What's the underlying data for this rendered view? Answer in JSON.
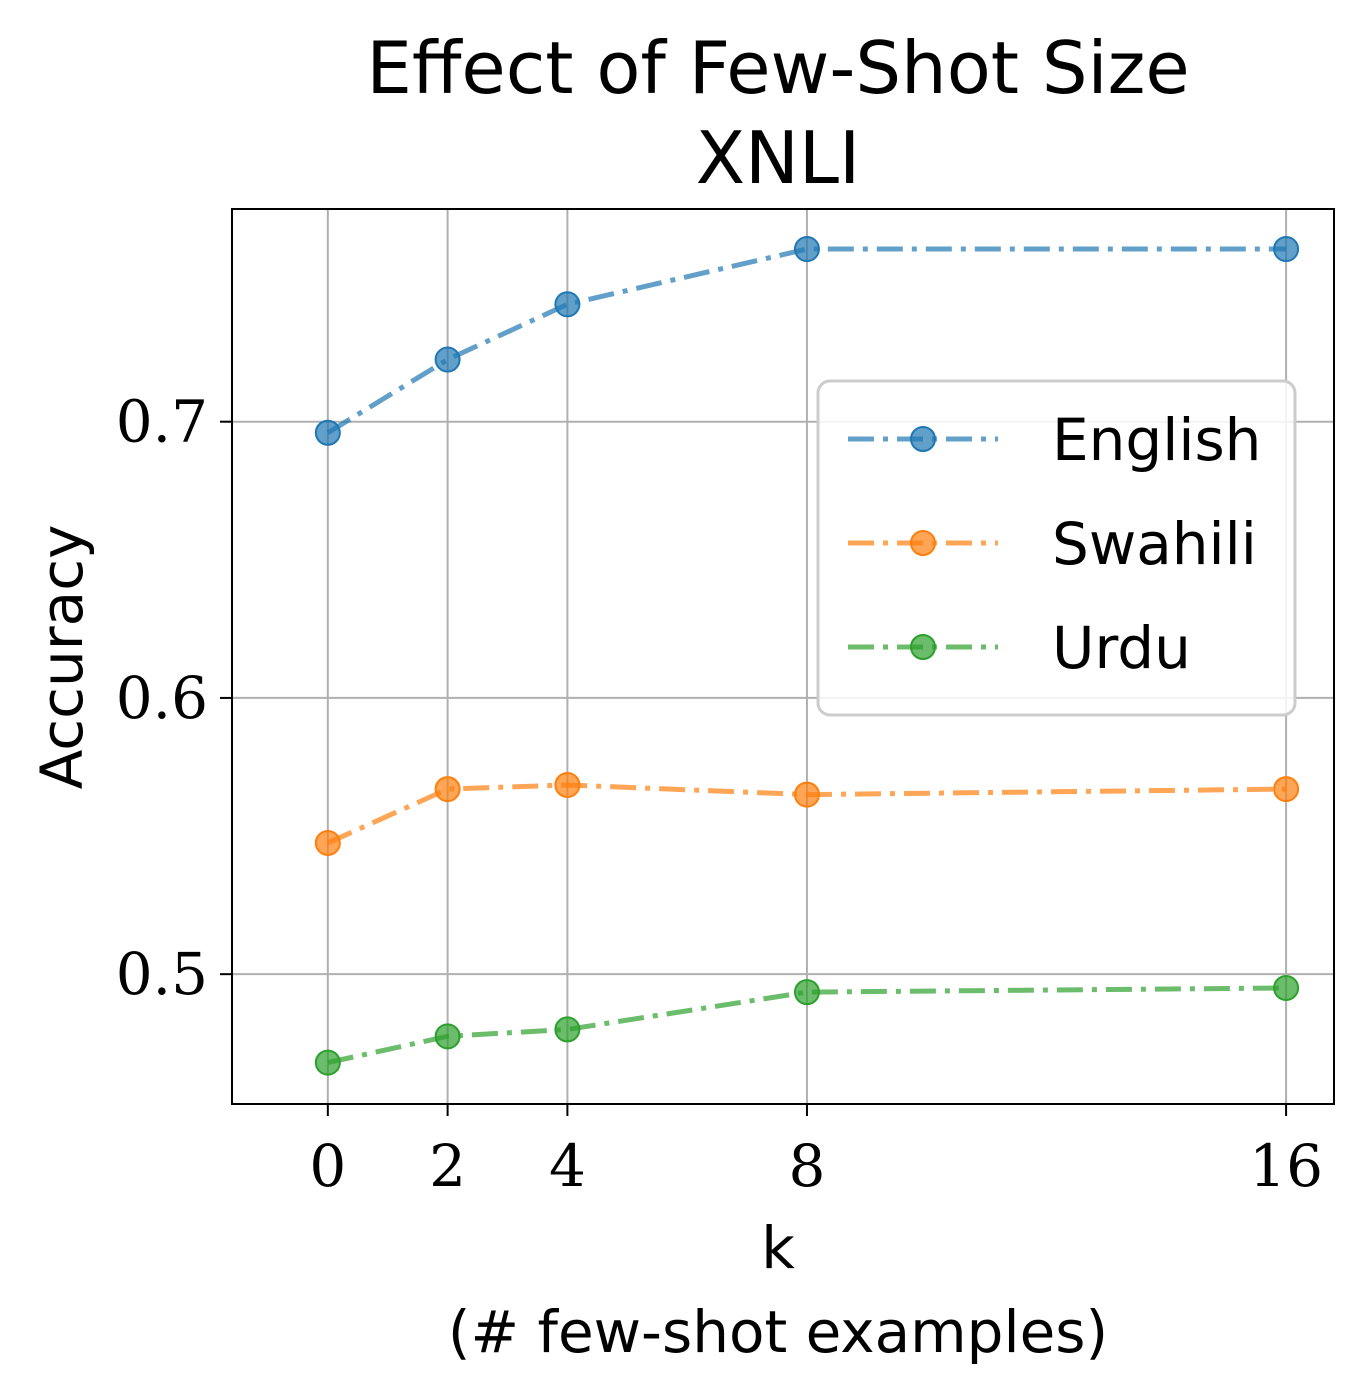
{
  "chart_data": {
    "type": "line",
    "title": "Effect of Few-Shot Size",
    "subtitle": "XNLI",
    "xlabel": "k",
    "xlabel_sub": "(# few-shot examples)",
    "ylabel": "Accuracy",
    "x": [
      0,
      2,
      4,
      8,
      16
    ],
    "x_ticks": [
      "0",
      "2",
      "4",
      "8",
      "16"
    ],
    "y_ticks": [
      "0.5",
      "0.6",
      "0.7"
    ],
    "xlim": [
      -1.6,
      16.8
    ],
    "ylim": [
      0.453,
      0.777
    ],
    "grid": true,
    "legend_position": "center-right",
    "series": [
      {
        "name": "English",
        "color": "#1f77b4",
        "values": [
          0.696,
          0.7225,
          0.7425,
          0.7625,
          0.7625
        ]
      },
      {
        "name": "Swahili",
        "color": "#ff7f0e",
        "values": [
          0.5475,
          0.567,
          0.5685,
          0.565,
          0.567
        ]
      },
      {
        "name": "Urdu",
        "color": "#2ca02c",
        "values": [
          0.468,
          0.4775,
          0.48,
          0.4935,
          0.495
        ]
      }
    ]
  }
}
